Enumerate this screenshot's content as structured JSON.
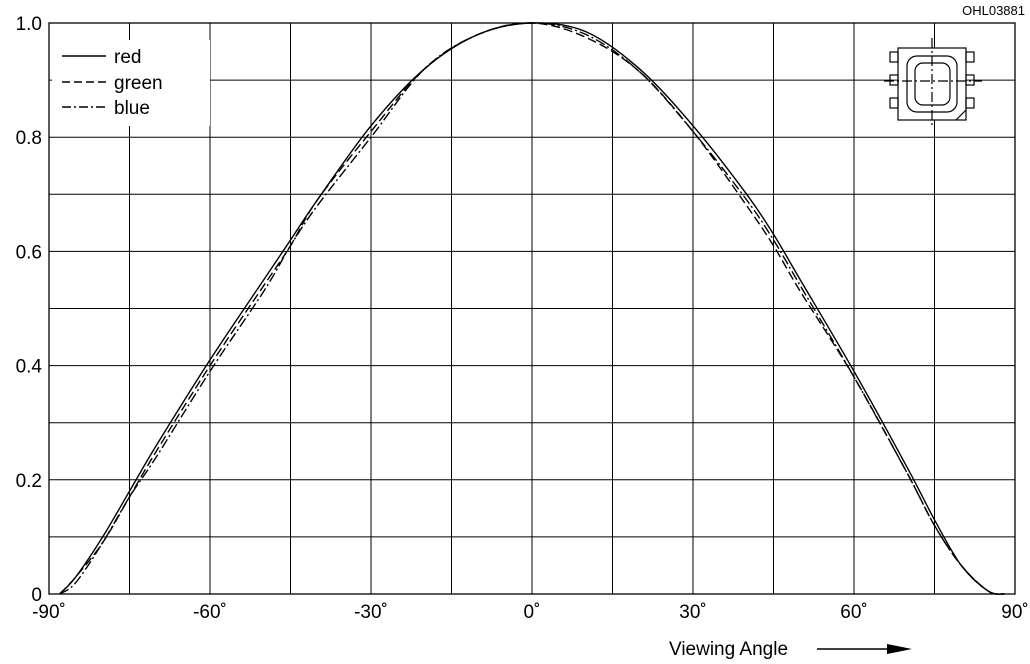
{
  "figure_code": "OHL03881",
  "chart_data": {
    "type": "line",
    "title": "",
    "xlabel": "Viewing Angle",
    "ylabel": "",
    "xlim": [
      -90,
      90
    ],
    "ylim": [
      0,
      1.0
    ],
    "grid": true,
    "legend_position": "top-left",
    "x_ticks": [
      -90,
      -60,
      -30,
      0,
      30,
      60,
      90
    ],
    "x_tick_labels": [
      "-90˚",
      "-60˚",
      "-30˚",
      "0˚",
      "30˚",
      "60˚",
      "90˚"
    ],
    "y_ticks": [
      0,
      0.2,
      0.4,
      0.6,
      0.8,
      1.0
    ],
    "y_tick_labels": [
      "0",
      "0.2",
      "0.4",
      "0.6",
      "0.8",
      "1.0"
    ],
    "x": [
      -88,
      -85,
      -80,
      -75,
      -70,
      -60,
      -50,
      -45,
      -40,
      -30,
      -20,
      -10,
      0,
      10,
      20,
      30,
      40,
      45,
      50,
      60,
      70,
      75,
      80,
      85,
      88
    ],
    "series": [
      {
        "name": "red",
        "style": "solid",
        "values": [
          0.0,
          0.03,
          0.1,
          0.18,
          0.26,
          0.41,
          0.55,
          0.62,
          0.69,
          0.82,
          0.92,
          0.98,
          1.0,
          0.985,
          0.92,
          0.82,
          0.7,
          0.63,
          0.55,
          0.39,
          0.22,
          0.13,
          0.05,
          0.005,
          0.0
        ]
      },
      {
        "name": "green",
        "style": "dashed",
        "values": [
          0.0,
          0.03,
          0.09,
          0.17,
          0.25,
          0.4,
          0.54,
          0.61,
          0.69,
          0.81,
          0.92,
          0.98,
          1.0,
          0.975,
          0.915,
          0.81,
          0.68,
          0.61,
          0.53,
          0.38,
          0.21,
          0.12,
          0.05,
          0.005,
          0.0
        ]
      },
      {
        "name": "blue",
        "style": "dashdot",
        "values": [
          0.0,
          0.02,
          0.09,
          0.17,
          0.24,
          0.39,
          0.53,
          0.61,
          0.68,
          0.8,
          0.92,
          0.98,
          1.0,
          0.98,
          0.915,
          0.81,
          0.69,
          0.62,
          0.54,
          0.38,
          0.21,
          0.12,
          0.05,
          0.005,
          0.0
        ]
      }
    ]
  }
}
